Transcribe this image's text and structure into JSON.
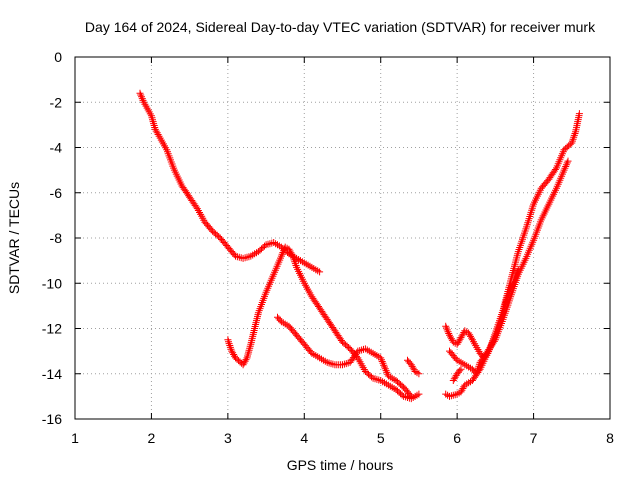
{
  "chart_data": {
    "type": "scatter",
    "title": "Day 164 of 2024, Sidereal Day-to-day VTEC variation (SDTVAR) for receiver murk",
    "xlabel": "GPS time / hours",
    "ylabel": "SDTVAR / TECUs",
    "xlim": [
      1,
      8
    ],
    "ylim": [
      -16,
      0
    ],
    "xticks": [
      1,
      2,
      3,
      4,
      5,
      6,
      7,
      8
    ],
    "yticks": [
      0,
      -2,
      -4,
      -6,
      -8,
      -10,
      -12,
      -14,
      -16
    ],
    "grid": true,
    "marker": "+",
    "color": "#ff0000",
    "series": [
      {
        "segments": [
          [
            [
              1.85,
              -1.6
            ],
            [
              1.9,
              -2.0
            ],
            [
              2.0,
              -2.6
            ],
            [
              2.05,
              -3.2
            ],
            [
              2.1,
              -3.5
            ],
            [
              2.2,
              -4.1
            ],
            [
              2.3,
              -5.0
            ],
            [
              2.4,
              -5.7
            ],
            [
              2.5,
              -6.2
            ],
            [
              2.6,
              -6.7
            ],
            [
              2.7,
              -7.3
            ],
            [
              2.8,
              -7.7
            ],
            [
              2.9,
              -8.0
            ],
            [
              3.0,
              -8.4
            ],
            [
              3.1,
              -8.8
            ],
            [
              3.2,
              -8.9
            ],
            [
              3.3,
              -8.8
            ],
            [
              3.4,
              -8.6
            ],
            [
              3.5,
              -8.3
            ],
            [
              3.6,
              -8.2
            ],
            [
              3.7,
              -8.4
            ],
            [
              3.8,
              -8.7
            ],
            [
              3.9,
              -8.9
            ],
            [
              4.0,
              -9.1
            ],
            [
              4.1,
              -9.3
            ],
            [
              4.2,
              -9.5
            ]
          ],
          [
            [
              3.0,
              -12.5
            ],
            [
              3.05,
              -13.0
            ],
            [
              3.1,
              -13.3
            ],
            [
              3.2,
              -13.6
            ],
            [
              3.25,
              -13.3
            ],
            [
              3.3,
              -12.7
            ],
            [
              3.35,
              -12.0
            ],
            [
              3.4,
              -11.3
            ],
            [
              3.5,
              -10.4
            ],
            [
              3.6,
              -9.6
            ],
            [
              3.7,
              -8.8
            ],
            [
              3.75,
              -8.4
            ],
            [
              3.8,
              -8.5
            ],
            [
              3.85,
              -8.8
            ],
            [
              3.9,
              -9.3
            ],
            [
              4.0,
              -10.0
            ],
            [
              4.1,
              -10.6
            ],
            [
              4.2,
              -11.1
            ],
            [
              4.3,
              -11.6
            ],
            [
              4.4,
              -12.1
            ],
            [
              4.5,
              -12.6
            ],
            [
              4.6,
              -12.9
            ],
            [
              4.7,
              -13.3
            ],
            [
              4.8,
              -13.9
            ],
            [
              4.9,
              -14.2
            ],
            [
              5.0,
              -14.3
            ],
            [
              5.1,
              -14.5
            ],
            [
              5.2,
              -14.7
            ],
            [
              5.3,
              -15.0
            ],
            [
              5.4,
              -15.1
            ],
            [
              5.5,
              -14.9
            ]
          ],
          [
            [
              3.65,
              -11.5
            ],
            [
              3.7,
              -11.7
            ],
            [
              3.8,
              -11.9
            ],
            [
              3.9,
              -12.3
            ],
            [
              4.0,
              -12.7
            ],
            [
              4.1,
              -13.1
            ],
            [
              4.2,
              -13.3
            ],
            [
              4.3,
              -13.5
            ],
            [
              4.4,
              -13.6
            ],
            [
              4.5,
              -13.6
            ],
            [
              4.6,
              -13.5
            ],
            [
              4.7,
              -13.0
            ],
            [
              4.8,
              -12.9
            ],
            [
              4.9,
              -13.1
            ],
            [
              5.0,
              -13.3
            ],
            [
              5.05,
              -13.7
            ],
            [
              5.1,
              -14.1
            ],
            [
              5.2,
              -14.3
            ],
            [
              5.3,
              -14.6
            ],
            [
              5.4,
              -15.0
            ]
          ],
          [
            [
              5.35,
              -13.4
            ],
            [
              5.4,
              -13.6
            ],
            [
              5.45,
              -13.9
            ],
            [
              5.5,
              -14.0
            ]
          ],
          [
            [
              5.85,
              -11.9
            ],
            [
              5.9,
              -12.3
            ],
            [
              5.95,
              -12.6
            ],
            [
              6.0,
              -12.7
            ],
            [
              6.05,
              -12.4
            ],
            [
              6.1,
              -12.1
            ],
            [
              6.15,
              -12.2
            ],
            [
              6.2,
              -12.5
            ],
            [
              6.3,
              -13.1
            ],
            [
              6.35,
              -13.3
            ],
            [
              6.4,
              -13.1
            ],
            [
              6.45,
              -12.7
            ],
            [
              6.5,
              -12.2
            ],
            [
              6.6,
              -11.2
            ],
            [
              6.7,
              -9.9
            ],
            [
              6.8,
              -8.6
            ],
            [
              6.9,
              -7.6
            ],
            [
              7.0,
              -6.5
            ],
            [
              7.1,
              -5.8
            ],
            [
              7.2,
              -5.4
            ],
            [
              7.3,
              -4.9
            ],
            [
              7.4,
              -4.1
            ],
            [
              7.5,
              -3.8
            ],
            [
              7.55,
              -3.3
            ],
            [
              7.6,
              -2.5
            ]
          ],
          [
            [
              5.9,
              -13.0
            ],
            [
              6.0,
              -13.4
            ],
            [
              6.1,
              -13.6
            ],
            [
              6.2,
              -13.8
            ],
            [
              6.25,
              -14.0
            ],
            [
              6.3,
              -13.5
            ],
            [
              6.4,
              -13.0
            ],
            [
              6.5,
              -12.5
            ],
            [
              6.6,
              -11.6
            ],
            [
              6.7,
              -10.6
            ],
            [
              6.8,
              -9.6
            ],
            [
              6.9,
              -8.9
            ],
            [
              7.0,
              -8.1
            ],
            [
              7.1,
              -7.2
            ],
            [
              7.2,
              -6.5
            ],
            [
              7.3,
              -5.8
            ],
            [
              7.4,
              -5.0
            ],
            [
              7.45,
              -4.6
            ]
          ],
          [
            [
              5.85,
              -14.9
            ],
            [
              5.9,
              -15.0
            ],
            [
              6.0,
              -14.9
            ],
            [
              6.05,
              -14.8
            ],
            [
              6.1,
              -14.5
            ],
            [
              6.2,
              -14.3
            ],
            [
              6.3,
              -13.8
            ],
            [
              6.4,
              -13.1
            ],
            [
              6.5,
              -12.3
            ],
            [
              6.6,
              -11.3
            ],
            [
              6.65,
              -10.7
            ],
            [
              6.7,
              -10.2
            ],
            [
              6.75,
              -9.9
            ],
            [
              6.8,
              -9.4
            ]
          ],
          [
            [
              5.95,
              -14.3
            ],
            [
              6.0,
              -14.0
            ],
            [
              6.05,
              -13.8
            ]
          ]
        ]
      }
    ]
  }
}
